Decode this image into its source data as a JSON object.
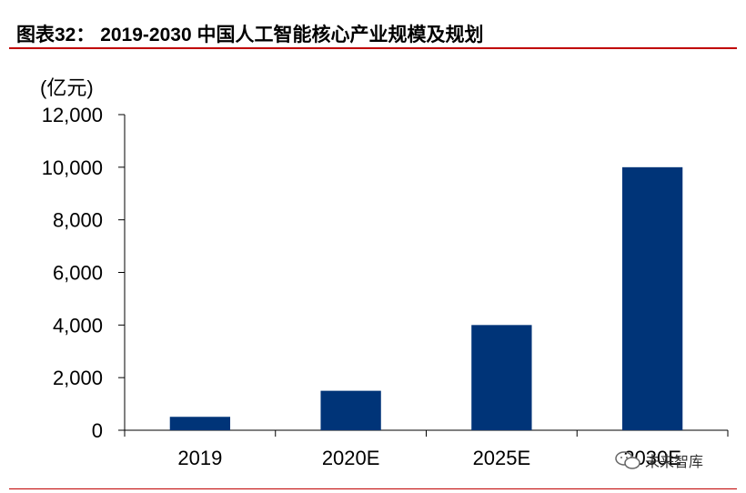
{
  "header": {
    "title": "图表32： 2019-2030 中国人工智能核心产业规模及规划"
  },
  "chart_data": {
    "type": "bar",
    "title": "图表32： 2019-2030 中国人工智能核心产业规模及规划",
    "unit_label": "(亿元)",
    "xlabel": "",
    "ylabel": "(亿元)",
    "categories": [
      "2019",
      "2020E",
      "2025E",
      "2030E"
    ],
    "values": [
      510,
      1500,
      4000,
      10000
    ],
    "ylim": [
      0,
      12000
    ],
    "yticks": [
      0,
      2000,
      4000,
      6000,
      8000,
      10000,
      12000
    ],
    "ytick_labels": [
      "0",
      "2,000",
      "4,000",
      "6,000",
      "8,000",
      "10,000",
      "12,000"
    ],
    "bar_color": "#003478",
    "grid": false,
    "legend": "none"
  },
  "watermark": {
    "text": "未来智库",
    "icon": "wechat-icon"
  },
  "colors": {
    "accent_rule": "#c00000",
    "bar": "#003478"
  }
}
